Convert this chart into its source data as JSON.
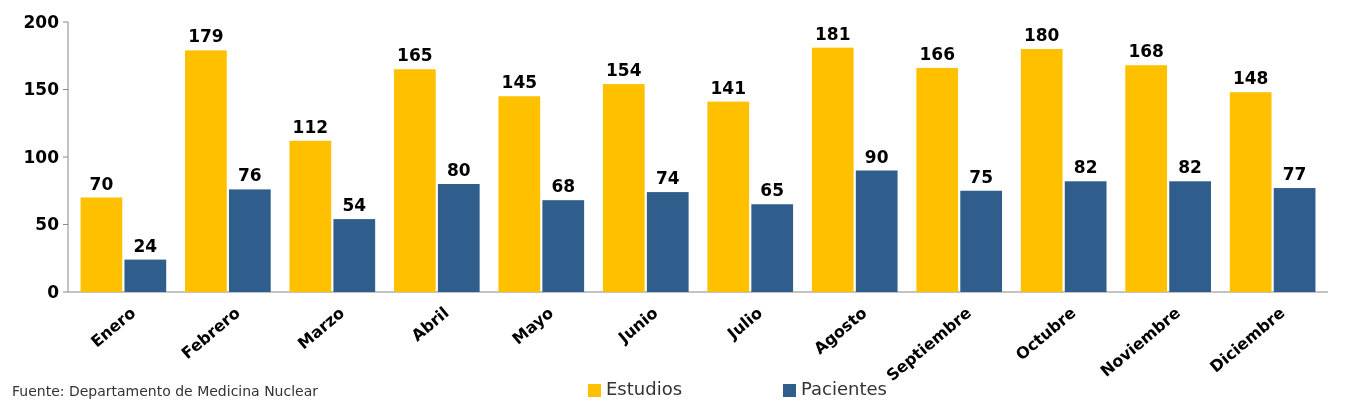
{
  "chart_data": {
    "type": "bar",
    "categories": [
      "Enero",
      "Febrero",
      "Marzo",
      "Abril",
      "Mayo",
      "Junio",
      "Julio",
      "Agosto",
      "Septiembre",
      "Octubre",
      "Noviembre",
      "Diciembre"
    ],
    "series": [
      {
        "name": "Estudios",
        "color": "#ffc000",
        "values": [
          70,
          179,
          112,
          165,
          145,
          154,
          141,
          181,
          166,
          180,
          168,
          148
        ]
      },
      {
        "name": "Pacientes",
        "color": "#2f5d8c",
        "values": [
          24,
          76,
          54,
          80,
          68,
          74,
          65,
          90,
          75,
          82,
          82,
          77
        ]
      }
    ],
    "ylim": [
      0,
      200
    ],
    "yticks": [
      0,
      50,
      100,
      150,
      200
    ],
    "grid": false,
    "legend": "bottom",
    "data_labels": true,
    "annotations": [
      "Fuente: Departamento de Medicina Nuclear"
    ]
  }
}
